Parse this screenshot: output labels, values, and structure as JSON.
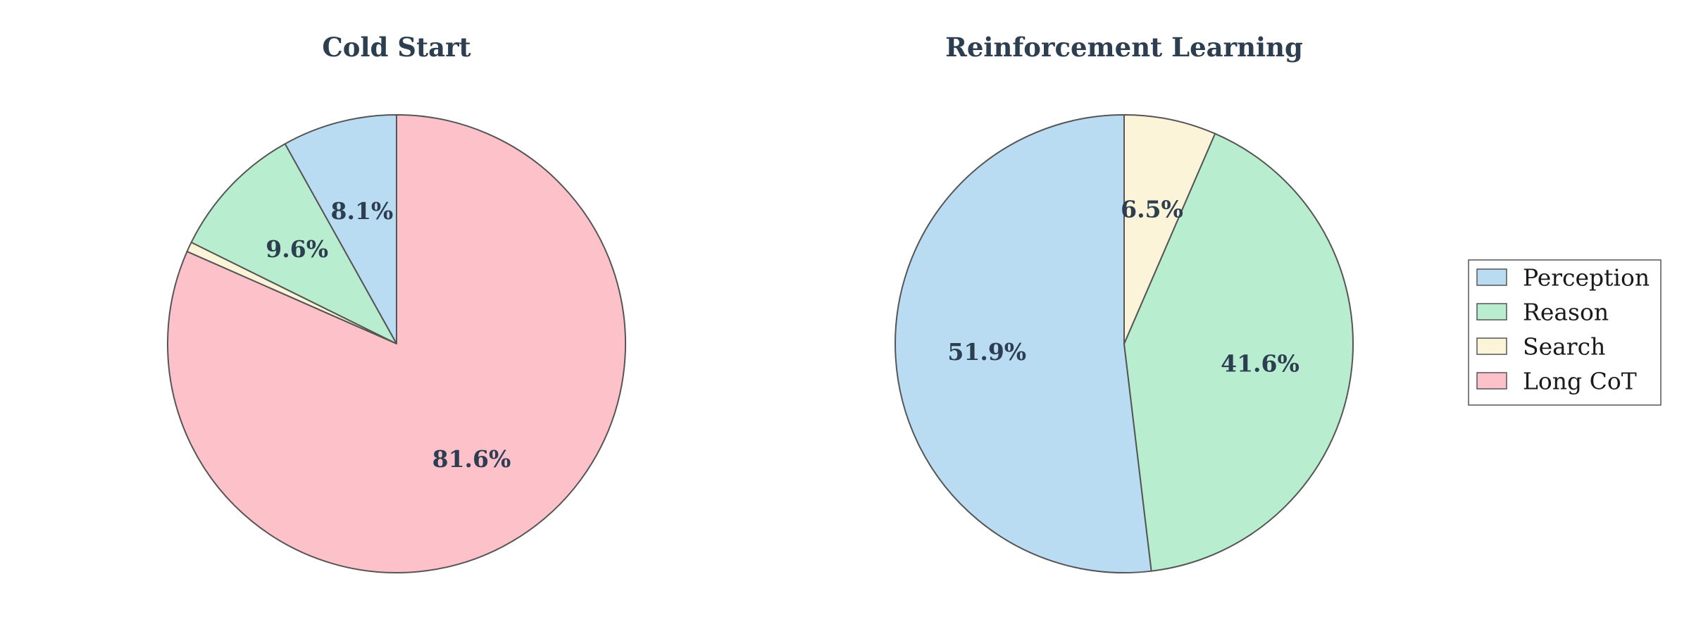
{
  "chart_data": [
    {
      "type": "pie",
      "title": "Cold Start",
      "slices": [
        {
          "label": "Perception",
          "value": 8.1,
          "pct_label": "8.1%"
        },
        {
          "label": "Reason",
          "value": 9.6,
          "pct_label": "9.6%"
        },
        {
          "label": "Search",
          "value": 0.7,
          "pct_label": ""
        },
        {
          "label": "Long CoT",
          "value": 81.6,
          "pct_label": "81.6%"
        }
      ]
    },
    {
      "type": "pie",
      "title": "Reinforcement Learning",
      "slices": [
        {
          "label": "Perception",
          "value": 51.9,
          "pct_label": "51.9%"
        },
        {
          "label": "Reason",
          "value": 41.6,
          "pct_label": "41.6%"
        },
        {
          "label": "Search",
          "value": 6.5,
          "pct_label": "6.5%"
        },
        {
          "label": "Long CoT",
          "value": 0,
          "pct_label": ""
        }
      ]
    }
  ],
  "legend": {
    "placement": "right",
    "items": [
      {
        "label": "Perception",
        "color": "#b9dcf2"
      },
      {
        "label": "Reason",
        "color": "#b8edcf"
      },
      {
        "label": "Search",
        "color": "#fbf4d8"
      },
      {
        "label": "Long CoT",
        "color": "#fdc1ca"
      }
    ]
  },
  "colors": {
    "edge": "#555555",
    "text": "#2c3e50"
  }
}
